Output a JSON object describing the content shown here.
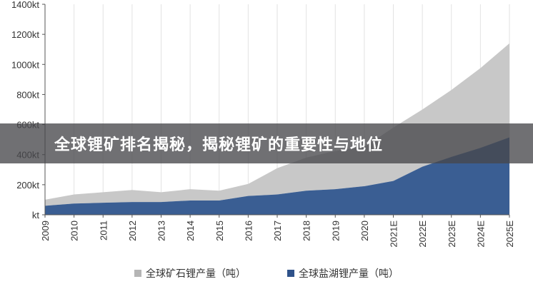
{
  "banner": {
    "title": "全球锂矿排名揭秘，揭秘锂矿的重要性与地位"
  },
  "chart_data": {
    "type": "area",
    "stacked": true,
    "categories": [
      "2009",
      "2010",
      "2011",
      "2012",
      "2013",
      "2014",
      "2015",
      "2016",
      "2017",
      "2018",
      "2019",
      "2020",
      "2021E",
      "2022E",
      "2023E",
      "2024E",
      "2025E"
    ],
    "y_ticks": [
      "kt",
      "200kt",
      "400kt",
      "600kt",
      "800kt",
      "1000kt",
      "1200kt",
      "1400kt"
    ],
    "ylim": [
      0,
      1400
    ],
    "grid": "vertical",
    "legend_position": "bottom",
    "series": [
      {
        "name": "全球盐湖锂产量（吨）",
        "color": "#3a5e93",
        "values": [
          60,
          75,
          80,
          85,
          85,
          95,
          95,
          125,
          135,
          160,
          170,
          190,
          225,
          320,
          385,
          445,
          515
        ]
      },
      {
        "name": "全球矿石锂产量（吨）",
        "color": "#c8c8c8",
        "values": [
          40,
          60,
          70,
          80,
          65,
          75,
          65,
          80,
          175,
          220,
          255,
          260,
          355,
          380,
          445,
          530,
          625
        ]
      }
    ]
  },
  "legend": {
    "items": [
      {
        "label": "全球矿石锂产量（吨）",
        "color": "#b5b5b5"
      },
      {
        "label": "全球盐湖锂产量（吨）",
        "color": "#2f528a"
      }
    ]
  }
}
